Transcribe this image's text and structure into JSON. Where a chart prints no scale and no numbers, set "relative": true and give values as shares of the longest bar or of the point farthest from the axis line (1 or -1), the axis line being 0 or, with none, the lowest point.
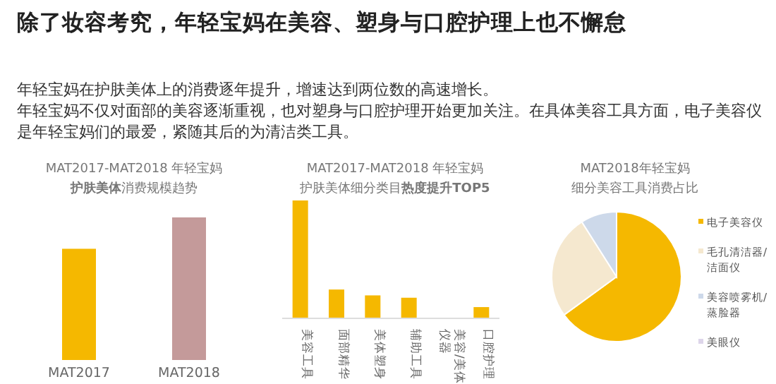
{
  "chart_data": [
    {
      "type": "other",
      "title": "除了妆容考究，年轻宝妈在美容、塑身与口腔护理上也不懈怠",
      "annotations": [
        "年轻宝妈在护肤美体上的消费逐年提升，增速达到两位数的高速增长。",
        "年轻宝妈不仅对面部的美容逐渐重视，也对塑身与口腔护理开始更加关注。在具体美容工具方面，电子美容仪是年轻宝妈们的最爱，紧随其后的为清洁类工具。"
      ]
    },
    {
      "type": "bar",
      "title": "MAT2017-MAT2018 年轻宝妈",
      "subtitle": "**护肤美体**消费规模趋势",
      "categories": [
        "MAT2017",
        "MAT2018"
      ],
      "values": [
        0.78,
        1
      ],
      "colors": [
        "#f5b800",
        "#c49a9a"
      ],
      "relative": true
    },
    {
      "type": "bar",
      "title": "MAT2017-MAT2018 年轻宝妈",
      "subtitle": "护肤美体细分类目**热度提升TOP5**",
      "categories": [
        "美容工具",
        "面部精华",
        "美体塑身",
        "辅助工具",
        "美容/美体仪器",
        "口腔护理"
      ],
      "values": [
        1,
        0.24,
        0.19,
        0.17,
        null,
        0.09
      ],
      "color": "#f5b800",
      "relative": true
    },
    {
      "type": "pie",
      "title": "MAT2018年轻宝妈",
      "subtitle": "细分美容工具消费占比",
      "categories": [
        "电子美容仪",
        "毛孔清洁器/洁面仪",
        "美容喷雾机/蒸脸器",
        "美眼仪"
      ],
      "values": [
        65,
        26,
        9,
        0
      ],
      "colors": [
        "#f5b800",
        "#f5e8cf",
        "#cdd9ea",
        "#ddd5ea"
      ],
      "legend": "right"
    }
  ]
}
